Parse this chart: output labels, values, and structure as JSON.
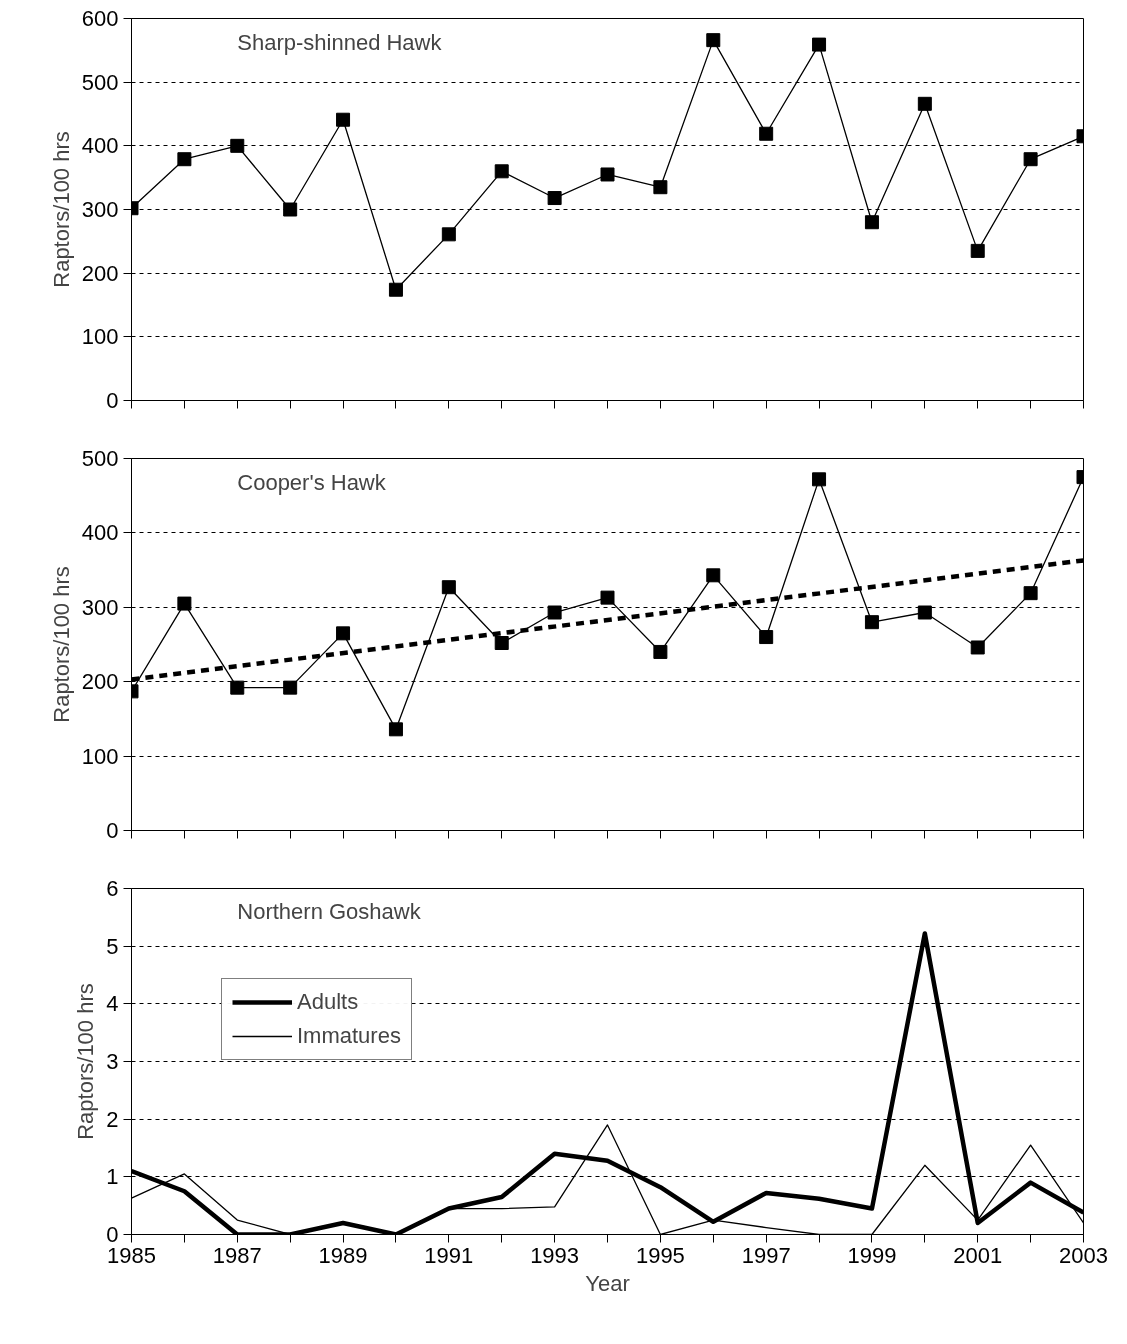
{
  "chart_data": [
    {
      "type": "line",
      "title": "Sharp-shinned Hawk",
      "ylabel": "Raptors/100 hrs",
      "x": [
        1985,
        1986,
        1987,
        1988,
        1989,
        1990,
        1991,
        1992,
        1993,
        1994,
        1995,
        1996,
        1997,
        1998,
        1999,
        2000,
        2001,
        2002,
        2003
      ],
      "marker": "square",
      "line_style": "solid",
      "grid": "y",
      "legend": false,
      "tick_labels": "y",
      "series": [
        {
          "color": "#000000",
          "values": [
            302,
            379,
            400,
            300,
            441,
            174,
            261,
            360,
            318,
            355,
            335,
            566,
            419,
            559,
            280,
            466,
            235,
            379,
            415
          ]
        }
      ],
      "xlim": [
        1985,
        2003
      ],
      "xticks": [
        1985,
        1986,
        1987,
        1988,
        1989,
        1990,
        1991,
        1992,
        1993,
        1994,
        1995,
        1996,
        1997,
        1998,
        1999,
        2000,
        2001,
        2002,
        2003
      ],
      "ylim": [
        0,
        600
      ],
      "yticks": [
        0,
        100,
        200,
        300,
        400,
        500,
        600
      ]
    },
    {
      "type": "line",
      "title": "Cooper's Hawk",
      "ylabel": "Raptors/100 hrs",
      "x": [
        1985,
        1986,
        1987,
        1988,
        1989,
        1990,
        1991,
        1992,
        1993,
        1994,
        1995,
        1996,
        1997,
        1998,
        1999,
        2000,
        2001,
        2002,
        2003
      ],
      "marker": "square",
      "line_style": "solid",
      "grid": "y",
      "legend": false,
      "tick_labels": "y",
      "series": [
        {
          "color": "#000000",
          "values": [
            187,
            305,
            192,
            192,
            265,
            136,
            327,
            252,
            293,
            313,
            240,
            343,
            260,
            472,
            280,
            293,
            246,
            319,
            475
          ]
        },
        {
          "color": "#000000",
          "x": [
            1985,
            2003
          ],
          "values": [
            203,
            363
          ],
          "marker": "none",
          "line_style": "dashed"
        }
      ],
      "xlim": [
        1985,
        2003
      ],
      "xticks": [
        1985,
        1986,
        1987,
        1988,
        1989,
        1990,
        1991,
        1992,
        1993,
        1994,
        1995,
        1996,
        1997,
        1998,
        1999,
        2000,
        2001,
        2002,
        2003
      ],
      "ylim": [
        0,
        500
      ],
      "yticks": [
        0,
        100,
        200,
        300,
        400,
        500
      ]
    },
    {
      "type": "line",
      "title": "Northern Goshawk",
      "xlabel": "Year",
      "ylabel": "Raptors/100 hrs",
      "x": [
        1985,
        1986,
        1987,
        1988,
        1989,
        1990,
        1991,
        1992,
        1993,
        1994,
        1995,
        1996,
        1997,
        1998,
        1999,
        2000,
        2001,
        2002,
        2003
      ],
      "marker": "none",
      "line_style": "solid",
      "grid": "y",
      "legend": "top left",
      "series": [
        {
          "name": "Adults",
          "color": "#000000",
          "values": [
            1.1,
            0.75,
            0,
            0,
            0.2,
            0,
            0.45,
            0.65,
            1.4,
            1.28,
            0.82,
            0.22,
            0.72,
            0.62,
            0.45,
            5.22,
            0.2,
            0.9,
            0.38
          ]
        },
        {
          "name": "Immatures",
          "color": "#000000",
          "values": [
            0.63,
            1.05,
            0.25,
            0,
            0.2,
            0,
            0.45,
            0.45,
            0.48,
            1.9,
            0,
            0.25,
            0.12,
            0,
            0,
            1.2,
            0.25,
            1.55,
            0.2
          ]
        }
      ],
      "xlim": [
        1985,
        2003
      ],
      "xticks": [
        1985,
        {
          "value": 1986,
          "label": null
        },
        1987,
        {
          "value": 1988,
          "label": null
        },
        1989,
        {
          "value": 1990,
          "label": null
        },
        1991,
        {
          "value": 1992,
          "label": null
        },
        1993,
        {
          "value": 1994,
          "label": null
        },
        1995,
        {
          "value": 1996,
          "label": null
        },
        1997,
        {
          "value": 1998,
          "label": null
        },
        1999,
        {
          "value": 2000,
          "label": null
        },
        2001,
        {
          "value": 2002,
          "label": null
        },
        2003
      ],
      "ylim": [
        0,
        6
      ],
      "yticks": [
        0,
        1,
        2,
        3,
        4,
        5,
        6
      ]
    }
  ]
}
